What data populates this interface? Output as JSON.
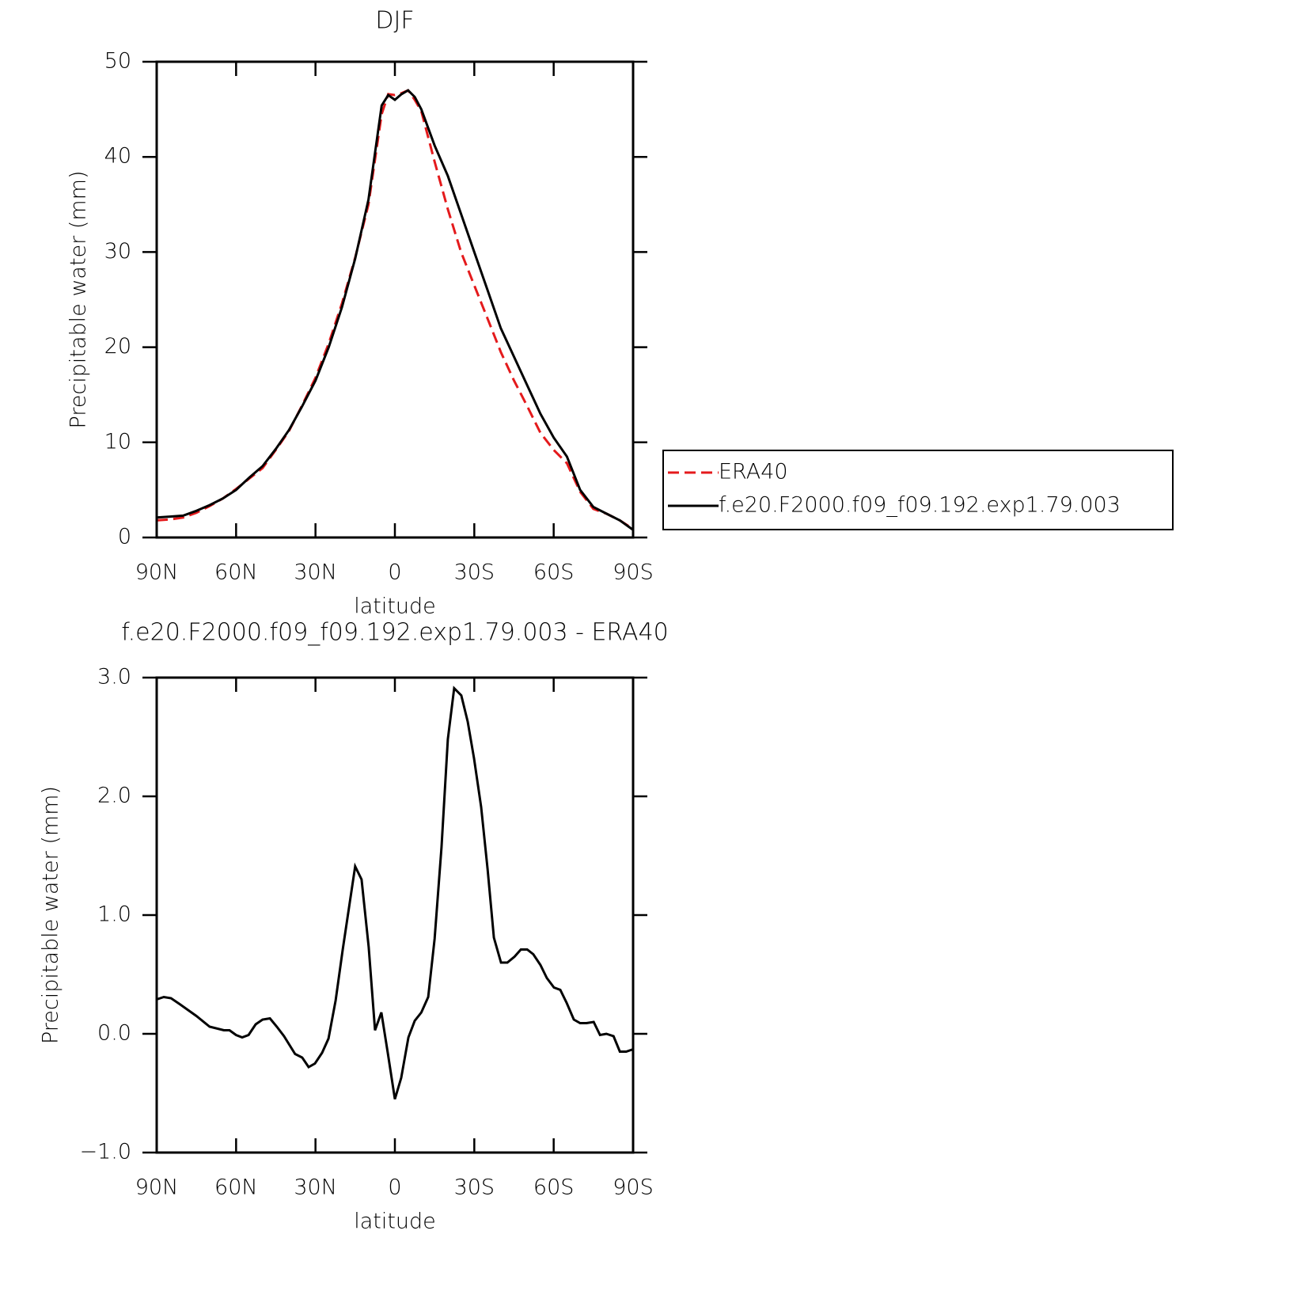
{
  "chart_data": [
    {
      "type": "line",
      "title": "DJF",
      "x_label": "latitude",
      "y_label": "Precipitable water (mm)",
      "x": [
        90,
        85,
        80,
        75,
        70,
        65,
        60,
        55,
        50,
        45,
        40,
        35,
        30,
        25,
        20,
        15,
        10,
        5,
        2.5,
        0,
        -2.5,
        -5,
        -7.5,
        -10,
        -15,
        -20,
        -25,
        -30,
        -35,
        -40,
        -45,
        -50,
        -55,
        -60,
        -65,
        -70,
        -75,
        -80,
        -85,
        -90
      ],
      "series": [
        {
          "name": "ERA40",
          "color": "#e41a1c",
          "dash": true,
          "values": [
            1.8,
            1.9,
            2.1,
            2.6,
            3.3,
            4.1,
            5.1,
            6.2,
            7.3,
            9.2,
            11.2,
            13.9,
            16.8,
            20.4,
            24.6,
            29.4,
            35.0,
            44.5,
            46.6,
            46.5,
            46.7,
            47.0,
            46.0,
            44.8,
            39.5,
            34.5,
            30.0,
            26.5,
            23.0,
            19.5,
            16.5,
            13.8,
            11.0,
            9.2,
            7.8,
            4.8,
            3.0,
            2.5,
            1.8,
            0.9
          ]
        },
        {
          "name": "f.e20.F2000.f09_f09.192.exp1.79.003",
          "color": "#000000",
          "dash": false,
          "values": [
            2.1,
            2.2,
            2.3,
            2.8,
            3.4,
            4.1,
            5.0,
            6.3,
            7.5,
            9.3,
            11.3,
            13.8,
            16.5,
            20.0,
            24.2,
            29.3,
            35.5,
            45.4,
            46.5,
            46.0,
            46.6,
            47.0,
            46.3,
            45.0,
            41.2,
            38.0,
            34.0,
            30.0,
            26.0,
            22.0,
            19.0,
            16.0,
            13.0,
            10.5,
            8.5,
            5.0,
            3.2,
            2.5,
            1.8,
            0.8
          ]
        }
      ],
      "xlim": [
        90,
        -90
      ],
      "xticks": [
        {
          "value": 90,
          "label": "90N"
        },
        {
          "value": 60,
          "label": "60N"
        },
        {
          "value": 30,
          "label": "30N"
        },
        0,
        {
          "value": -30,
          "label": "30S"
        },
        {
          "value": -60,
          "label": "60S"
        },
        {
          "value": -90,
          "label": "90S"
        }
      ],
      "ylim": [
        0,
        50
      ],
      "yticks": [
        0,
        10,
        20,
        30,
        40,
        50
      ],
      "legend": "right"
    },
    {
      "type": "line",
      "title": "f.e20.F2000.f09_f09.192.exp1.79.003 - ERA40",
      "x_label": "latitude",
      "y_label": "Precipitable water (mm)",
      "x": [
        90,
        87.3,
        84.6,
        81.3,
        75,
        70,
        64.6,
        62.5,
        60,
        57.7,
        55.3,
        52.6,
        50,
        47.2,
        44.6,
        41.9,
        37.7,
        35,
        32.6,
        30.2,
        27.5,
        25.1,
        22.4,
        19.7,
        15,
        12.6,
        9.9,
        7.5,
        5.1,
        2.7,
        0,
        -2.4,
        -5.1,
        -7.5,
        -10,
        -12.6,
        -15,
        -17.6,
        -20,
        -22.4,
        -25.1,
        -27.5,
        -29.9,
        -32.6,
        -35,
        -37.4,
        -40.1,
        -42.5,
        -45.2,
        -47.6,
        -50,
        -52.3,
        -55,
        -57.4,
        -60.1,
        -62.5,
        -64.9,
        -67.6,
        -70,
        -72.4,
        -75.1,
        -77.5,
        -79.9,
        -82.6,
        -85,
        -87.4,
        -90
      ],
      "series": [
        {
          "name": "f.e20.F2000.f09_f09.192.exp1.79.003 - ERA40",
          "color": "#000000",
          "dash": false,
          "values": [
            0.29,
            0.31,
            0.3,
            0.25,
            0.15,
            0.06,
            0.03,
            0.03,
            -0.01,
            -0.03,
            -0.01,
            0.08,
            0.12,
            0.13,
            0.06,
            -0.02,
            -0.17,
            -0.2,
            -0.28,
            -0.25,
            -0.16,
            -0.04,
            0.28,
            0.71,
            1.41,
            1.3,
            0.73,
            0.03,
            0.18,
            -0.16,
            -0.55,
            -0.37,
            -0.03,
            0.11,
            0.18,
            0.31,
            0.8,
            1.57,
            2.48,
            2.91,
            2.85,
            2.63,
            2.32,
            1.91,
            1.39,
            0.81,
            0.6,
            0.6,
            0.65,
            0.71,
            0.71,
            0.67,
            0.58,
            0.47,
            0.39,
            0.37,
            0.26,
            0.12,
            0.09,
            0.09,
            0.1,
            -0.01,
            0.0,
            -0.02,
            -0.15,
            -0.15,
            -0.13
          ]
        }
      ],
      "xlim": [
        90,
        -90
      ],
      "xticks": [
        {
          "value": 90,
          "label": "90N"
        },
        {
          "value": 60,
          "label": "60N"
        },
        {
          "value": 30,
          "label": "30N"
        },
        0,
        {
          "value": -30,
          "label": "30S"
        },
        {
          "value": -60,
          "label": "60S"
        },
        {
          "value": -90,
          "label": "90S"
        }
      ],
      "ylim": [
        -1,
        3
      ],
      "yticks": [
        {
          "value": -1,
          "label": "−1.0"
        },
        {
          "value": 0,
          "label": "0.0"
        },
        {
          "value": 1,
          "label": "1.0"
        },
        {
          "value": 2,
          "label": "2.0"
        },
        {
          "value": 3,
          "label": "3.0"
        }
      ]
    }
  ]
}
